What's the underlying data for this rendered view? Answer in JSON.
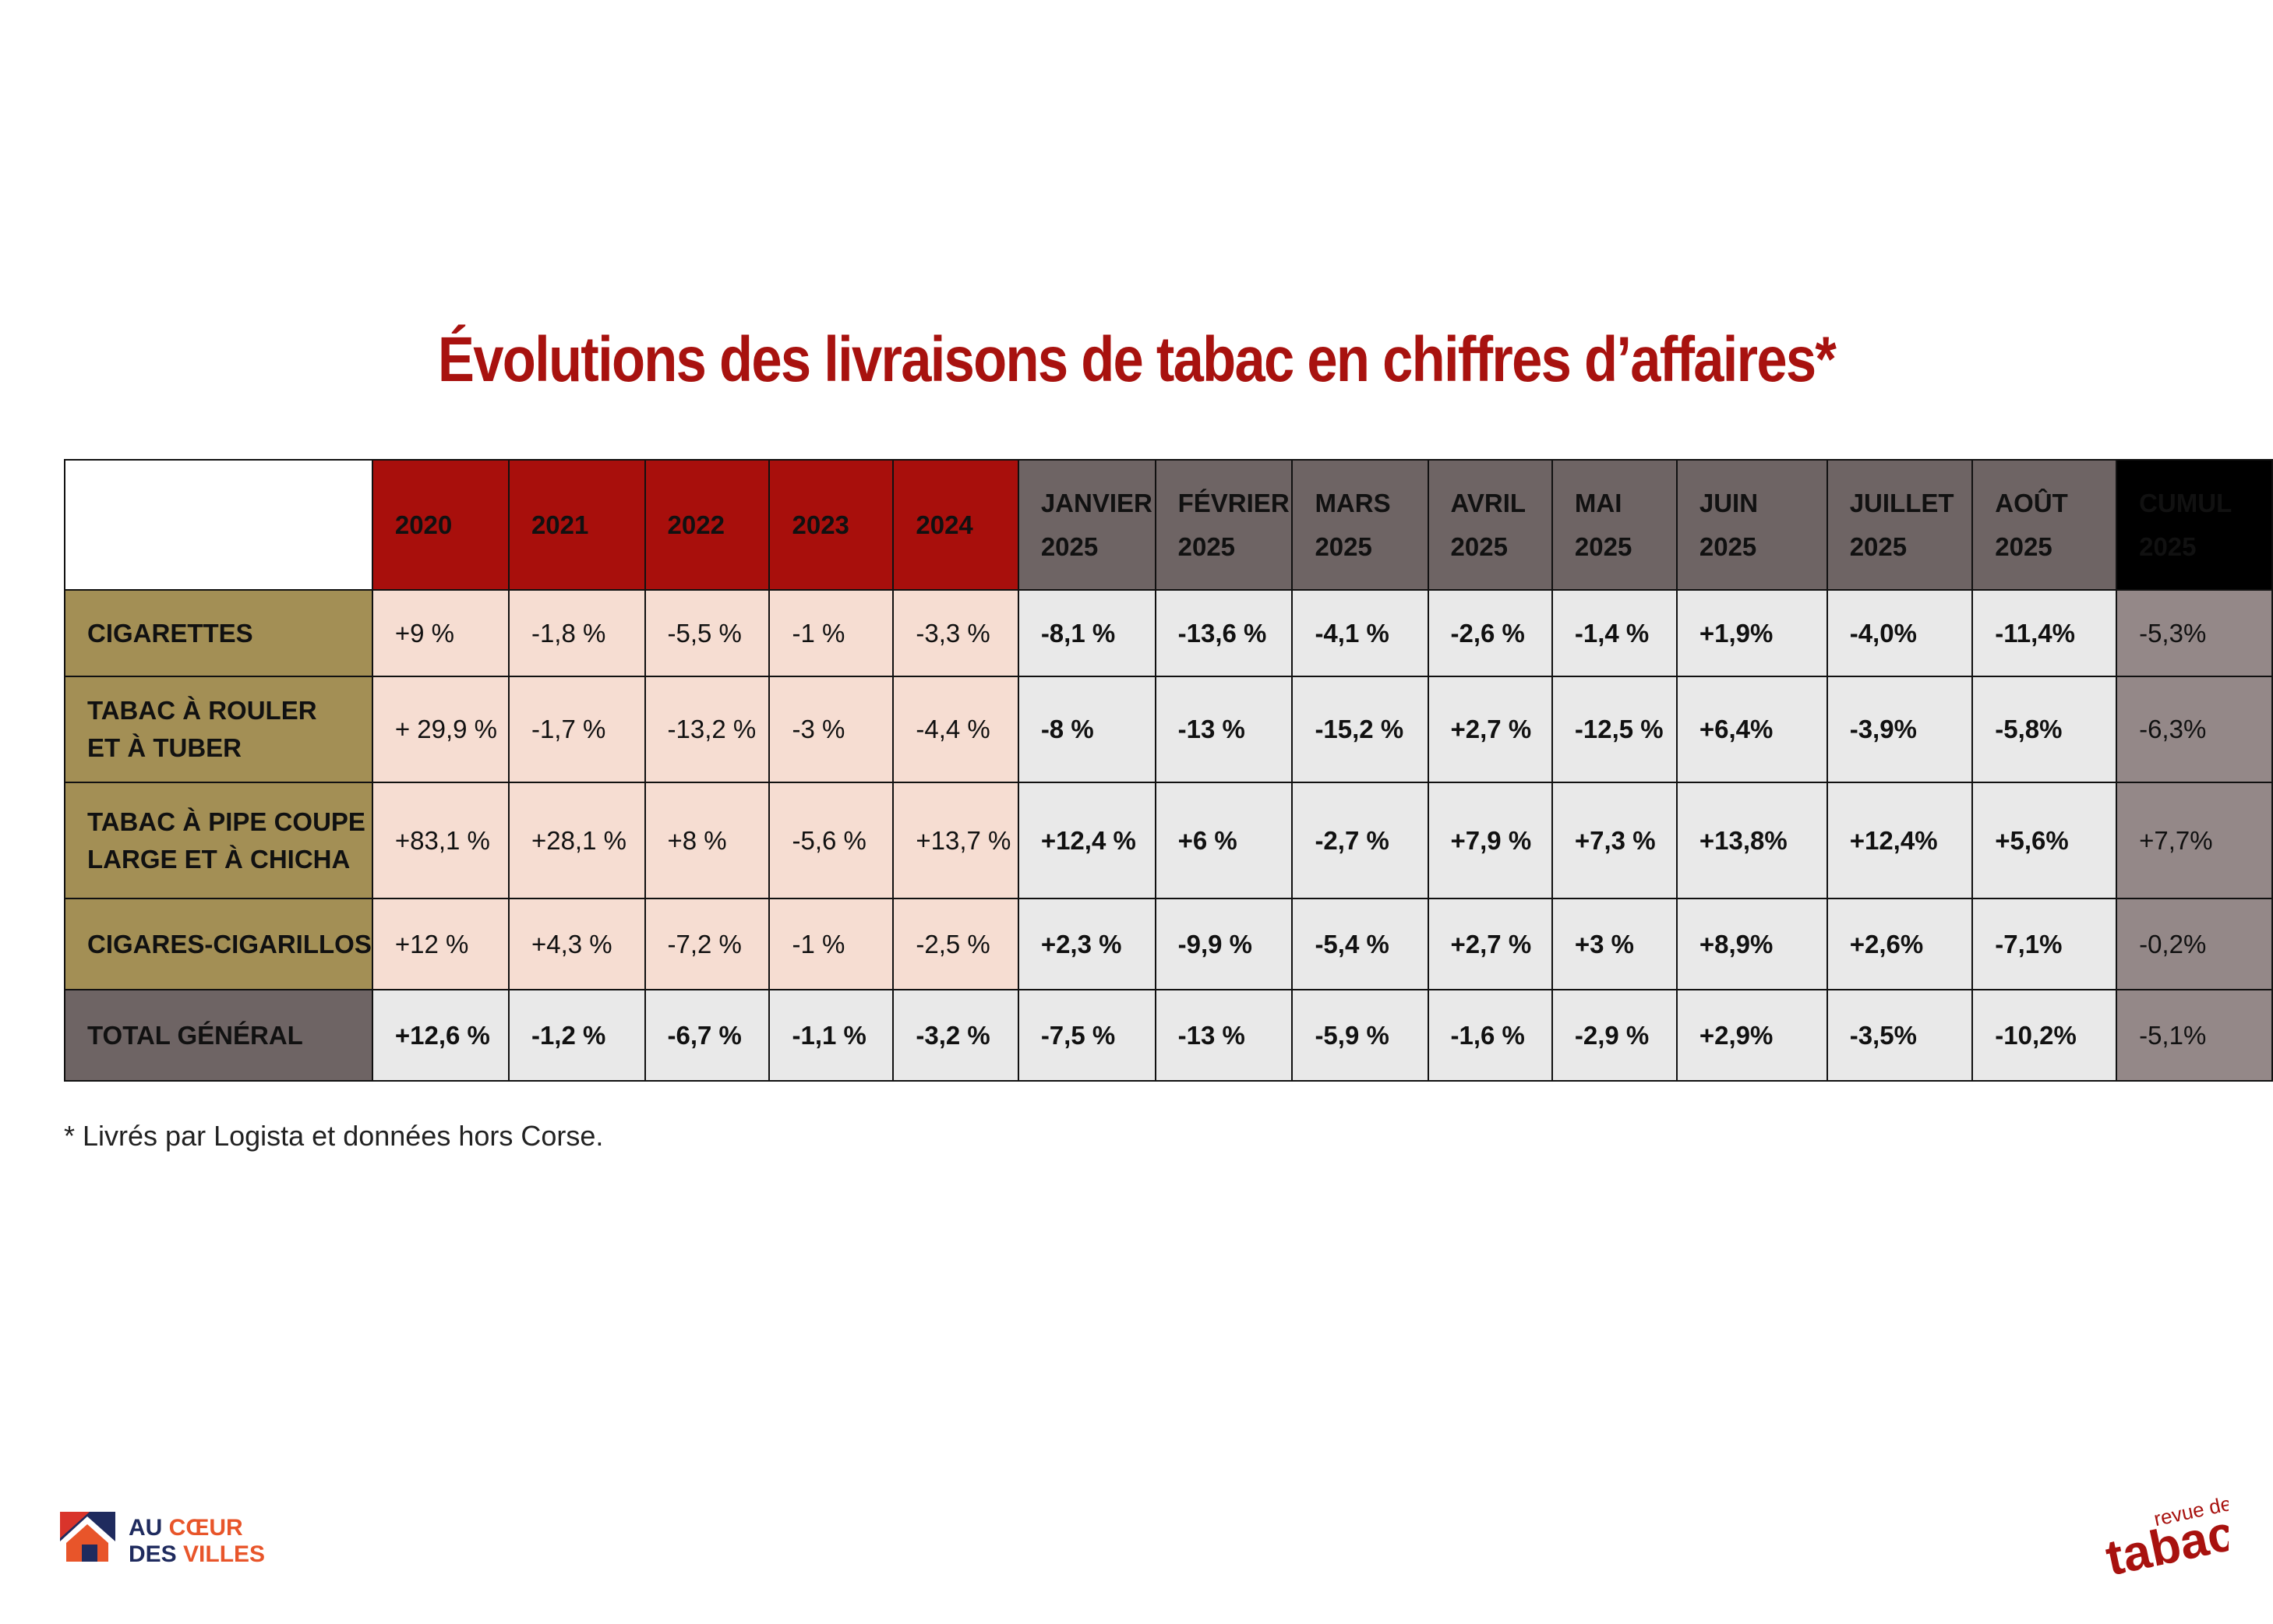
{
  "title": "Évolutions des livraisons de tabac en chiffres d’affaires*",
  "footnote": "* Livrés par Logista et données hors Corse.",
  "logos": {
    "left": {
      "line1_a": "AU ",
      "line1_b": "CŒUR",
      "line2_a": "DES ",
      "line2_b": "VILLES"
    },
    "right": {
      "small": "revue des",
      "big": "tabacs"
    }
  },
  "colors": {
    "title": "#a8120f",
    "year_header": "#a80f0c",
    "month_header": "#6e6464",
    "cumul_header": "#000000",
    "row_label": "#a38f55",
    "total_label": "#6e6464",
    "hist_cell": "#f6ddd2",
    "month_cell": "#e9e9e9",
    "cumul_cell": "#948888"
  },
  "chart_data": {
    "type": "table",
    "title": "Évolutions des livraisons de tabac en chiffres d’affaires*",
    "columns": [
      {
        "line1": "2020",
        "line2": ""
      },
      {
        "line1": "2021",
        "line2": ""
      },
      {
        "line1": "2022",
        "line2": ""
      },
      {
        "line1": "2023",
        "line2": ""
      },
      {
        "line1": "2024",
        "line2": ""
      },
      {
        "line1": "JANVIER",
        "line2": "2025"
      },
      {
        "line1": "FÉVRIER",
        "line2": "2025"
      },
      {
        "line1": "MARS",
        "line2": "2025"
      },
      {
        "line1": "AVRIL",
        "line2": "2025"
      },
      {
        "line1": "MAI",
        "line2": "2025"
      },
      {
        "line1": "JUIN",
        "line2": "2025"
      },
      {
        "line1": "JUILLET",
        "line2": "2025"
      },
      {
        "line1": "AOÛT",
        "line2": "2025"
      },
      {
        "line1": "CUMUL",
        "line2": "2025"
      }
    ],
    "rows": [
      {
        "label1": "CIGARETTES",
        "label2": "",
        "values": [
          "+9 %",
          "-1,8 %",
          "-5,5 %",
          "-1 %",
          "-3,3 %",
          "-8,1 %",
          "-13,6 %",
          "-4,1 %",
          "-2,6 %",
          "-1,4 %",
          "+1,9%",
          "-4,0%",
          "-11,4%",
          "-5,3%"
        ]
      },
      {
        "label1": "TABAC À ROULER",
        "label2": "ET À TUBER",
        "values": [
          "+ 29,9 %",
          "-1,7 %",
          "-13,2 %",
          "-3 %",
          "-4,4 %",
          "-8 %",
          "-13 %",
          "-15,2 %",
          "+2,7 %",
          "-12,5 %",
          "+6,4%",
          "-3,9%",
          "-5,8%",
          "-6,3%"
        ]
      },
      {
        "label1": "TABAC À PIPE COUPE",
        "label2": "LARGE ET À CHICHA",
        "values": [
          "+83,1 %",
          "+28,1 %",
          "+8 %",
          "-5,6 %",
          "+13,7 %",
          "+12,4 %",
          "+6 %",
          "-2,7 %",
          "+7,9 %",
          "+7,3 %",
          "+13,8%",
          "+12,4%",
          "+5,6%",
          "+7,7%"
        ]
      },
      {
        "label1": "CIGARES-CIGARILLOS",
        "label2": "",
        "values": [
          "+12 %",
          "+4,3 %",
          "-7,2 %",
          "-1 %",
          "-2,5 %",
          "+2,3 %",
          "-9,9 %",
          "-5,4 %",
          "+2,7 %",
          "+3 %",
          "+8,9%",
          "+2,6%",
          "-7,1%",
          "-0,2%"
        ]
      },
      {
        "label1": "TOTAL GÉNÉRAL",
        "label2": "",
        "values": [
          "+12,6 %",
          "-1,2 %",
          "-6,7 %",
          "-1,1 %",
          "-3,2 %",
          "-7,5 %",
          "-13 %",
          "-5,9 %",
          "-1,6 %",
          "-2,9 %",
          "+2,9%",
          "-3,5%",
          "-10,2%",
          "-5,1%"
        ]
      }
    ]
  }
}
